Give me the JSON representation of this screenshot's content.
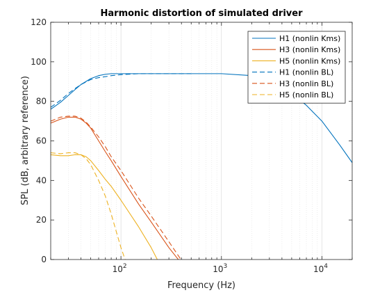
{
  "chart_data": {
    "type": "line",
    "title": "Harmonic distortion of simulated driver",
    "xlabel": "Frequency (Hz)",
    "ylabel": "SPL (dB, arbitrary reference)",
    "xscale": "log",
    "xlim": [
      20,
      20000
    ],
    "ylim": [
      0,
      120
    ],
    "yticks": [
      0,
      20,
      40,
      60,
      80,
      100,
      120
    ],
    "xticks": [
      {
        "value": 100,
        "base": "10",
        "exp": "2"
      },
      {
        "value": 1000,
        "base": "10",
        "exp": "3"
      },
      {
        "value": 10000,
        "base": "10",
        "exp": "4"
      }
    ],
    "grid": "x-major-and-minor",
    "legend_position": "top-right",
    "colors": {
      "H1": "#0072BD",
      "H3": "#D95319",
      "H5": "#EDB120",
      "axis": "#262626",
      "grid": "#dfdfdf"
    },
    "series": [
      {
        "name": "H1 (nonlin Kms)",
        "color": "#0072BD",
        "dash": "solid",
        "x": [
          20,
          25,
          30,
          35,
          40,
          50,
          60,
          70,
          80,
          100,
          150,
          200,
          500,
          1000,
          2000,
          3000,
          5000,
          7000,
          10000,
          15000,
          20000
        ],
        "y": [
          76,
          79.5,
          83,
          86,
          88.5,
          91.5,
          93,
          93.7,
          94,
          94,
          94,
          94,
          94,
          94,
          93,
          91,
          84,
          78,
          70,
          58,
          49
        ]
      },
      {
        "name": "H3 (nonlin Kms)",
        "color": "#D95319",
        "dash": "solid",
        "x": [
          20,
          25,
          30,
          35,
          40,
          45,
          50,
          60,
          70,
          80,
          100,
          150,
          200,
          300,
          400
        ],
        "y": [
          69,
          71,
          72,
          72,
          71,
          69,
          66.5,
          60,
          54.5,
          50,
          42,
          28,
          19,
          6,
          -2
        ]
      },
      {
        "name": "H5 (nonlin Kms)",
        "color": "#EDB120",
        "dash": "solid",
        "x": [
          20,
          25,
          30,
          35,
          40,
          45,
          50,
          60,
          70,
          80,
          100,
          150,
          200,
          230
        ],
        "y": [
          53,
          52.5,
          52.5,
          53,
          53,
          52,
          50,
          45,
          40.5,
          37,
          30,
          16.5,
          6,
          0
        ]
      },
      {
        "name": "H1 (nonlin BL)",
        "color": "#0072BD",
        "dash": "dashed",
        "x": [
          20,
          25,
          30,
          35,
          40,
          50,
          60,
          70,
          80,
          100,
          150,
          200,
          500
        ],
        "y": [
          77,
          80.5,
          84,
          86.5,
          88.5,
          91,
          92,
          92.5,
          93,
          93.5,
          94,
          94,
          94
        ]
      },
      {
        "name": "H3 (nonlin BL)",
        "color": "#D95319",
        "dash": "dashed",
        "x": [
          20,
          25,
          30,
          35,
          40,
          45,
          50,
          60,
          70,
          80,
          100,
          150,
          200,
          300,
          420
        ],
        "y": [
          70,
          72,
          72.5,
          72.5,
          71.5,
          69.5,
          67,
          62,
          57,
          52,
          45,
          31,
          22,
          9,
          -2
        ]
      },
      {
        "name": "H5 (nonlin BL)",
        "color": "#EDB120",
        "dash": "dashed",
        "x": [
          20,
          25,
          30,
          35,
          40,
          45,
          50,
          60,
          70,
          80,
          90,
          100,
          110
        ],
        "y": [
          54,
          53.5,
          54,
          54,
          53,
          51,
          48,
          40,
          32,
          23,
          14,
          6,
          0
        ]
      }
    ]
  }
}
